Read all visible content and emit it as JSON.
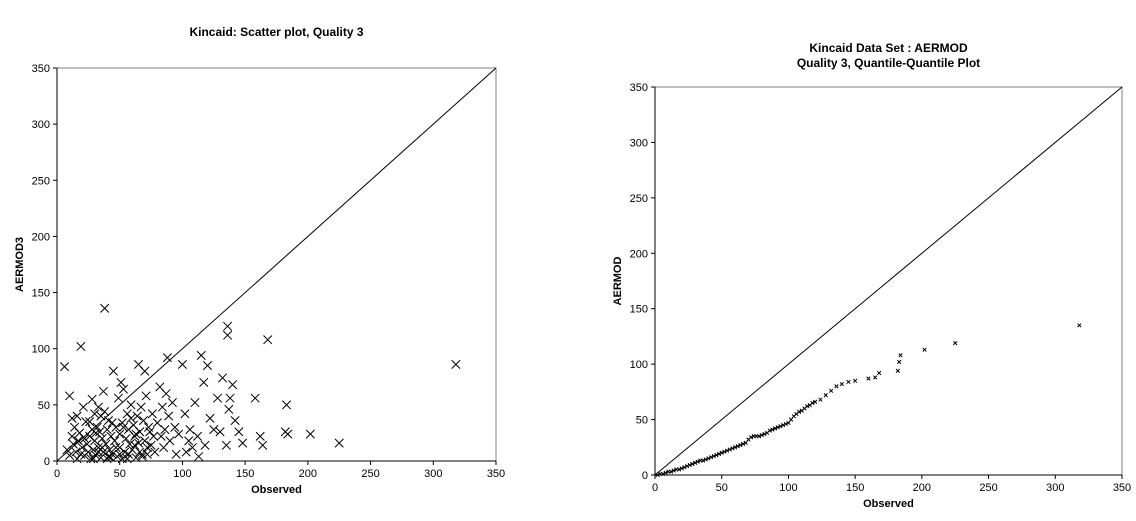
{
  "chart_data": [
    {
      "type": "scatter",
      "title": "Kincaid: Scatter plot, Quality 3",
      "xlabel": "Observed",
      "ylabel": "AERMOD3",
      "xlim": [
        0,
        350
      ],
      "ylim": [
        0,
        350
      ],
      "x_ticks": [
        "0",
        "50",
        "100",
        "150",
        "200",
        "250",
        "300",
        "350"
      ],
      "y_ticks": [
        "0",
        "50",
        "100",
        "150",
        "200",
        "250",
        "300",
        "350"
      ],
      "marker": "x",
      "reference_line": "1:1",
      "grid": false,
      "points": [
        [
          6,
          84
        ],
        [
          19,
          102
        ],
        [
          38,
          136
        ],
        [
          10,
          58
        ],
        [
          12,
          38
        ],
        [
          8,
          10
        ],
        [
          10,
          5
        ],
        [
          12,
          22
        ],
        [
          14,
          30
        ],
        [
          15,
          8
        ],
        [
          16,
          2
        ],
        [
          17,
          18
        ],
        [
          18,
          25
        ],
        [
          20,
          12
        ],
        [
          21,
          48
        ],
        [
          22,
          5
        ],
        [
          23,
          35
        ],
        [
          24,
          15
        ],
        [
          25,
          8
        ],
        [
          26,
          22
        ],
        [
          27,
          2
        ],
        [
          28,
          28
        ],
        [
          29,
          10
        ],
        [
          30,
          42
        ],
        [
          30,
          18
        ],
        [
          31,
          5
        ],
        [
          32,
          30
        ],
        [
          33,
          12
        ],
        [
          34,
          26
        ],
        [
          35,
          40
        ],
        [
          35,
          3
        ],
        [
          36,
          20
        ],
        [
          37,
          8
        ],
        [
          38,
          44
        ],
        [
          39,
          15
        ],
        [
          40,
          28
        ],
        [
          40,
          2
        ],
        [
          41,
          36
        ],
        [
          42,
          10
        ],
        [
          43,
          22
        ],
        [
          44,
          6
        ],
        [
          45,
          80
        ],
        [
          46,
          18
        ],
        [
          47,
          30
        ],
        [
          48,
          4
        ],
        [
          49,
          56
        ],
        [
          50,
          24
        ],
        [
          50,
          12
        ],
        [
          51,
          70
        ],
        [
          52,
          34
        ],
        [
          53,
          64
        ],
        [
          54,
          8
        ],
        [
          55,
          20
        ],
        [
          56,
          42
        ],
        [
          57,
          28
        ],
        [
          58,
          15
        ],
        [
          59,
          50
        ],
        [
          60,
          10
        ],
        [
          61,
          32
        ],
        [
          62,
          22
        ],
        [
          63,
          3
        ],
        [
          64,
          40
        ],
        [
          65,
          86
        ],
        [
          65,
          16
        ],
        [
          66,
          26
        ],
        [
          67,
          48
        ],
        [
          68,
          6
        ],
        [
          69,
          36
        ],
        [
          70,
          80
        ],
        [
          70,
          18
        ],
        [
          71,
          58
        ],
        [
          72,
          12
        ],
        [
          73,
          30
        ],
        [
          74,
          26
        ],
        [
          75,
          14
        ],
        [
          76,
          42
        ],
        [
          78,
          8
        ],
        [
          80,
          34
        ],
        [
          82,
          66
        ],
        [
          83,
          22
        ],
        [
          84,
          48
        ],
        [
          85,
          12
        ],
        [
          86,
          28
        ],
        [
          87,
          60
        ],
        [
          88,
          92
        ],
        [
          89,
          40
        ],
        [
          90,
          18
        ],
        [
          92,
          52
        ],
        [
          94,
          30
        ],
        [
          95,
          6
        ],
        [
          97,
          24
        ],
        [
          100,
          86
        ],
        [
          102,
          42
        ],
        [
          103,
          8
        ],
        [
          105,
          18
        ],
        [
          106,
          28
        ],
        [
          108,
          12
        ],
        [
          110,
          52
        ],
        [
          112,
          22
        ],
        [
          113,
          4
        ],
        [
          115,
          94
        ],
        [
          117,
          70
        ],
        [
          118,
          14
        ],
        [
          120,
          85
        ],
        [
          122,
          38
        ],
        [
          125,
          28
        ],
        [
          128,
          56
        ],
        [
          130,
          26
        ],
        [
          132,
          74
        ],
        [
          135,
          14
        ],
        [
          136,
          120
        ],
        [
          136,
          112
        ],
        [
          137,
          46
        ],
        [
          138,
          56
        ],
        [
          140,
          68
        ],
        [
          142,
          36
        ],
        [
          145,
          26
        ],
        [
          148,
          16
        ],
        [
          158,
          56
        ],
        [
          162,
          22
        ],
        [
          164,
          14
        ],
        [
          168,
          108
        ],
        [
          182,
          26
        ],
        [
          183,
          50
        ],
        [
          184,
          24
        ],
        [
          202,
          24
        ],
        [
          225,
          16
        ],
        [
          318,
          86
        ],
        [
          28,
          55
        ],
        [
          33,
          8
        ],
        [
          37,
          62
        ],
        [
          43,
          3
        ],
        [
          52,
          2
        ],
        [
          57,
          6
        ],
        [
          62,
          14
        ],
        [
          68,
          4
        ],
        [
          13,
          15
        ],
        [
          16,
          40
        ],
        [
          19,
          6
        ],
        [
          22,
          20
        ],
        [
          26,
          35
        ],
        [
          29,
          2
        ],
        [
          31,
          25
        ],
        [
          33,
          48
        ],
        [
          36,
          12
        ],
        [
          41,
          4
        ],
        [
          44,
          34
        ],
        [
          47,
          12
        ],
        [
          50,
          6
        ],
        [
          53,
          30
        ],
        [
          56,
          2
        ],
        [
          59,
          38
        ],
        [
          63,
          24
        ],
        [
          66,
          8
        ],
        [
          72,
          6
        ],
        [
          77,
          22
        ]
      ]
    },
    {
      "type": "scatter",
      "title": "Kincaid Data Set : AERMOD\nQuality 3, Quantile-Quantile Plot",
      "title_lines": [
        "Kincaid Data Set : AERMOD",
        "Quality 3, Quantile-Quantile Plot"
      ],
      "xlabel": "Observed",
      "ylabel": "AERMOD",
      "xlim": [
        0,
        350
      ],
      "ylim": [
        0,
        350
      ],
      "x_ticks": [
        "0",
        "50",
        "100",
        "150",
        "200",
        "250",
        "300",
        "350"
      ],
      "y_ticks": [
        "0",
        "50",
        "100",
        "150",
        "200",
        "250",
        "300",
        "350"
      ],
      "marker": "x",
      "reference_line": "1:1",
      "grid": false,
      "points": [
        [
          2,
          0
        ],
        [
          4,
          1
        ],
        [
          6,
          1
        ],
        [
          8,
          2
        ],
        [
          10,
          3
        ],
        [
          12,
          3
        ],
        [
          14,
          4
        ],
        [
          16,
          5
        ],
        [
          18,
          5
        ],
        [
          20,
          6
        ],
        [
          22,
          7
        ],
        [
          24,
          8
        ],
        [
          26,
          9
        ],
        [
          28,
          10
        ],
        [
          30,
          11
        ],
        [
          32,
          12
        ],
        [
          34,
          13
        ],
        [
          36,
          13
        ],
        [
          38,
          14
        ],
        [
          40,
          15
        ],
        [
          42,
          16
        ],
        [
          44,
          17
        ],
        [
          46,
          18
        ],
        [
          48,
          19
        ],
        [
          50,
          20
        ],
        [
          52,
          21
        ],
        [
          54,
          22
        ],
        [
          56,
          23
        ],
        [
          58,
          24
        ],
        [
          60,
          25
        ],
        [
          62,
          26
        ],
        [
          64,
          27
        ],
        [
          66,
          28
        ],
        [
          68,
          29
        ],
        [
          70,
          32
        ],
        [
          72,
          34
        ],
        [
          74,
          35
        ],
        [
          76,
          35
        ],
        [
          78,
          35
        ],
        [
          80,
          36
        ],
        [
          82,
          37
        ],
        [
          84,
          38
        ],
        [
          86,
          40
        ],
        [
          88,
          41
        ],
        [
          90,
          42
        ],
        [
          92,
          43
        ],
        [
          94,
          44
        ],
        [
          96,
          45
        ],
        [
          98,
          46
        ],
        [
          100,
          47
        ],
        [
          102,
          50
        ],
        [
          104,
          53
        ],
        [
          106,
          55
        ],
        [
          108,
          57
        ],
        [
          110,
          58
        ],
        [
          112,
          60
        ],
        [
          114,
          62
        ],
        [
          116,
          63
        ],
        [
          118,
          65
        ],
        [
          120,
          66
        ],
        [
          124,
          68
        ],
        [
          128,
          72
        ],
        [
          132,
          76
        ],
        [
          136,
          80
        ],
        [
          140,
          82
        ],
        [
          145,
          84
        ],
        [
          150,
          85
        ],
        [
          160,
          87
        ],
        [
          165,
          88
        ],
        [
          168,
          92
        ],
        [
          182,
          94
        ],
        [
          183,
          102
        ],
        [
          184,
          108
        ],
        [
          202,
          113
        ],
        [
          225,
          119
        ],
        [
          318,
          135
        ]
      ]
    }
  ]
}
